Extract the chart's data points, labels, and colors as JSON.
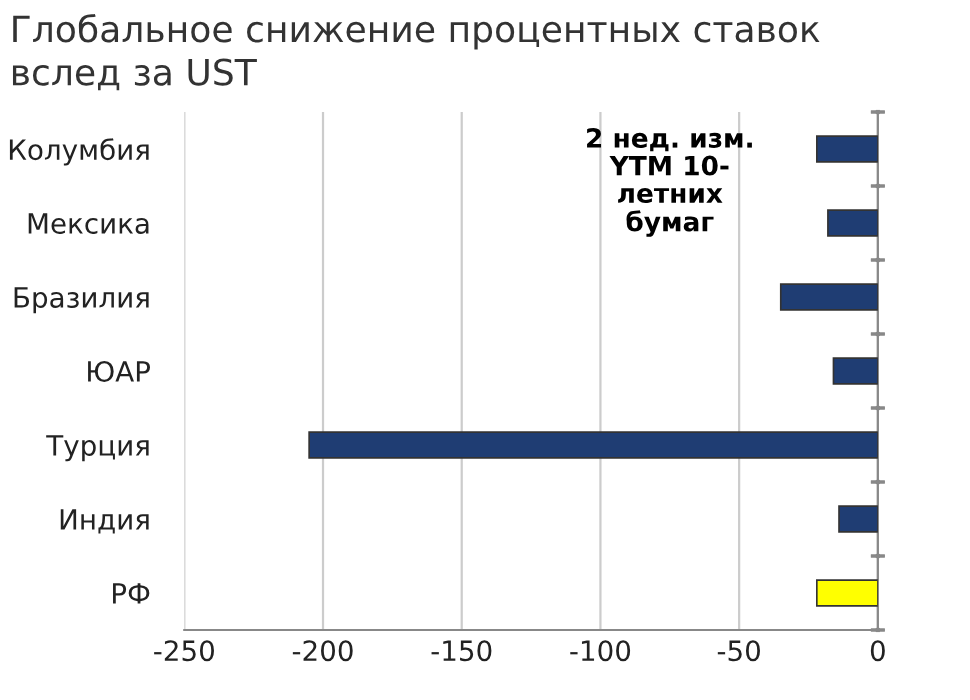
{
  "chart_data": {
    "type": "bar",
    "orientation": "horizontal",
    "title": "Глобальное снижение процентных ставок\nвслед за UST",
    "categories": [
      "Колумбия",
      "Мексика",
      "Бразилия",
      "ЮАР",
      "Турция",
      "Индия",
      "РФ"
    ],
    "values": [
      -22,
      -18,
      -35,
      -16,
      -205,
      -14,
      -22
    ],
    "colors": [
      "#1f3d73",
      "#1f3d73",
      "#1f3d73",
      "#1f3d73",
      "#1f3d73",
      "#1f3d73",
      "#ffff00"
    ],
    "xlim": [
      -250,
      0
    ],
    "xticks": [
      -250,
      -200,
      -150,
      -100,
      -50,
      0
    ],
    "grid": "x",
    "annotations": [
      "2 нед. изм.\nYTM 10-\nлетних\nбумаг"
    ]
  }
}
